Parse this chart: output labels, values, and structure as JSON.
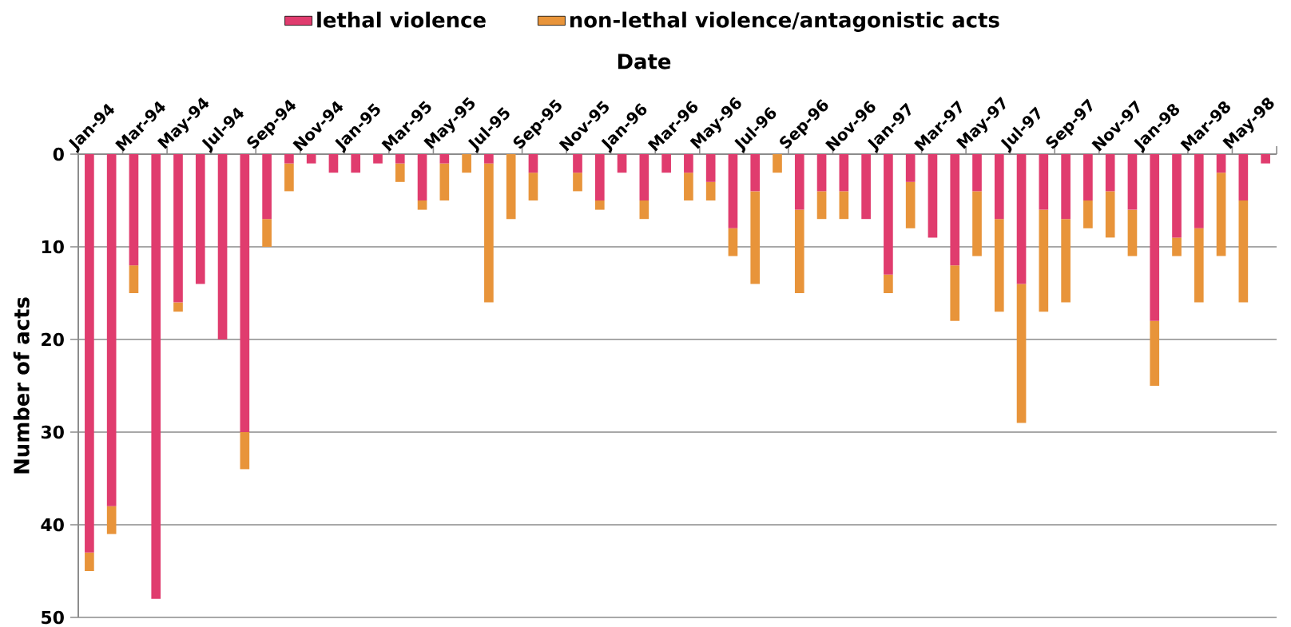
{
  "chart_data": {
    "type": "bar",
    "stacked": true,
    "xlabel": "Date",
    "ylabel": "Number of acts",
    "categories": [
      "Jan-94",
      null,
      "Mar-94",
      null,
      "May-94",
      null,
      "Jul-94",
      null,
      "Sep-94",
      null,
      "Nov-94",
      null,
      "Jan-95",
      null,
      "Mar-95",
      null,
      "May-95",
      null,
      "Jul-95",
      null,
      "Sep-95",
      null,
      "Nov-95",
      null,
      "Jan-96",
      null,
      "Mar-96",
      null,
      "May-96",
      null,
      "Jul-96",
      null,
      "Sep-96",
      null,
      "Nov-96",
      null,
      "Jan-97",
      null,
      "Mar-97",
      null,
      "May-97",
      null,
      "Jul-97",
      null,
      "Sep-97",
      null,
      "Nov-97",
      null,
      "Jan-98",
      null,
      "Mar-98",
      null,
      "May-98",
      null
    ],
    "series": [
      {
        "name": "lethal violence",
        "color": "#e03c6e",
        "values": [
          43,
          38,
          12,
          48,
          16,
          14,
          20,
          30,
          7,
          1,
          1,
          2,
          2,
          1,
          1,
          5,
          1,
          0,
          1,
          0,
          2,
          0,
          2,
          5,
          2,
          5,
          2,
          2,
          3,
          8,
          4,
          0,
          6,
          4,
          4,
          7,
          13,
          3,
          9,
          12,
          4,
          7,
          14,
          6,
          7,
          5,
          4,
          6,
          18,
          9,
          8,
          2,
          5,
          1
        ]
      },
      {
        "name": "non-lethal violence/antagonistic acts",
        "color": "#e8943a",
        "values": [
          2,
          3,
          3,
          0,
          1,
          0,
          0,
          4,
          3,
          3,
          0,
          0,
          0,
          0,
          2,
          1,
          4,
          2,
          15,
          7,
          3,
          0,
          2,
          1,
          0,
          2,
          0,
          3,
          2,
          3,
          10,
          2,
          9,
          3,
          3,
          0,
          2,
          5,
          0,
          6,
          7,
          10,
          15,
          11,
          9,
          3,
          5,
          5,
          7,
          2,
          8,
          9,
          11,
          0
        ]
      }
    ],
    "ylim": [
      50,
      0
    ],
    "yticks": [
      0,
      10,
      20,
      30,
      40,
      50
    ],
    "grid": "y",
    "legend": "top"
  }
}
